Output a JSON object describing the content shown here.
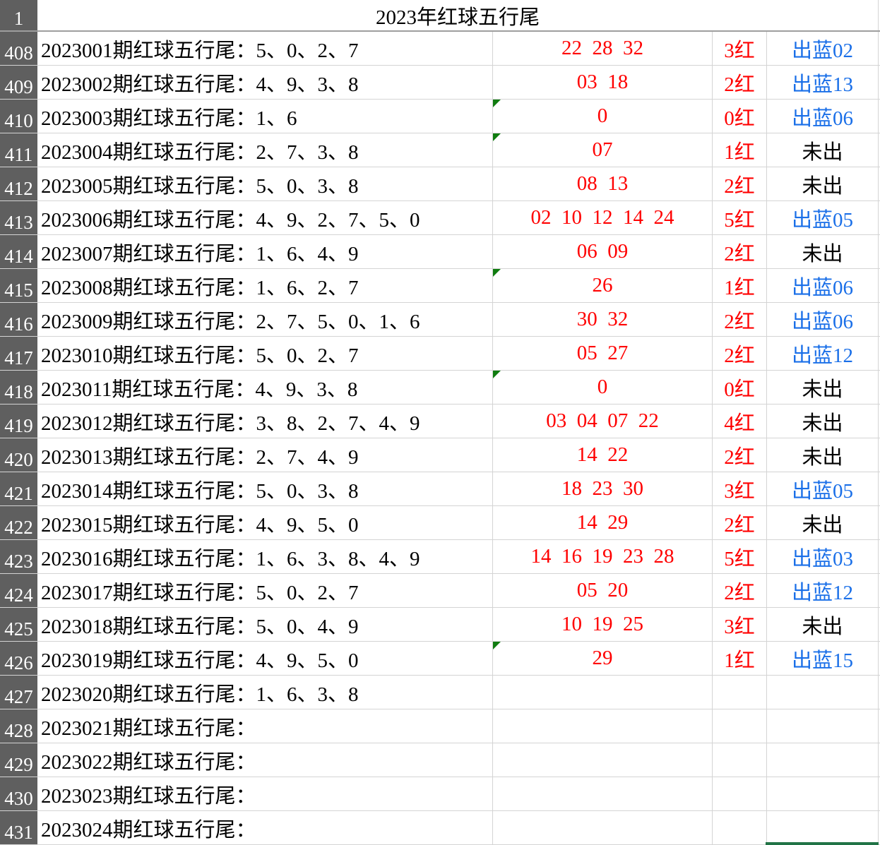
{
  "title_row": {
    "row_number": "1",
    "title": "2023年红球五行尾"
  },
  "colors": {
    "red": "#ff0000",
    "blue": "#1a6fe8",
    "black": "#000000",
    "indicator": "#107c10",
    "header_bg": "#5f5f5f"
  },
  "rows": [
    {
      "num": "408",
      "a": "2023001期红球五行尾：5、0、2、7",
      "b": "22  28  32",
      "c": "3红",
      "d": "出蓝02",
      "d_color": "blue",
      "flag": false
    },
    {
      "num": "409",
      "a": "2023002期红球五行尾：4、9、3、8",
      "b": "03  18",
      "c": "2红",
      "d": "出蓝13",
      "d_color": "blue",
      "flag": false
    },
    {
      "num": "410",
      "a": "2023003期红球五行尾：1、6",
      "b": "0",
      "c": "0红",
      "d": "出蓝06",
      "d_color": "blue",
      "flag": true
    },
    {
      "num": "411",
      "a": "2023004期红球五行尾：2、7、3、8",
      "b": "07",
      "c": "1红",
      "d": "未出",
      "d_color": "black",
      "flag": true
    },
    {
      "num": "412",
      "a": "2023005期红球五行尾：5、0、3、8",
      "b": "08  13",
      "c": "2红",
      "d": "未出",
      "d_color": "black",
      "flag": false
    },
    {
      "num": "413",
      "a": "2023006期红球五行尾：4、9、2、7、5、0",
      "b": "02  10  12  14  24",
      "c": "5红",
      "d": "出蓝05",
      "d_color": "blue",
      "flag": false
    },
    {
      "num": "414",
      "a": "2023007期红球五行尾：1、6、4、9",
      "b": "06  09",
      "c": "2红",
      "d": "未出",
      "d_color": "black",
      "flag": false
    },
    {
      "num": "415",
      "a": "2023008期红球五行尾：1、6、2、7",
      "b": "26",
      "c": "1红",
      "d": "出蓝06",
      "d_color": "blue",
      "flag": true
    },
    {
      "num": "416",
      "a": "2023009期红球五行尾：2、7、5、0、1、6",
      "b": "30  32",
      "c": "2红",
      "d": "出蓝06",
      "d_color": "blue",
      "flag": false
    },
    {
      "num": "417",
      "a": "2023010期红球五行尾：5、0、2、7",
      "b": "05  27",
      "c": "2红",
      "d": "出蓝12",
      "d_color": "blue",
      "flag": false
    },
    {
      "num": "418",
      "a": "2023011期红球五行尾：4、9、3、8",
      "b": "0",
      "c": "0红",
      "d": "未出",
      "d_color": "black",
      "flag": true
    },
    {
      "num": "419",
      "a": "2023012期红球五行尾：3、8、2、7、4、9",
      "b": "03  04  07  22",
      "c": "4红",
      "d": "未出",
      "d_color": "black",
      "flag": false
    },
    {
      "num": "420",
      "a": "2023013期红球五行尾：2、7、4、9",
      "b": "14  22",
      "c": "2红",
      "d": "未出",
      "d_color": "black",
      "flag": false
    },
    {
      "num": "421",
      "a": "2023014期红球五行尾：5、0、3、8",
      "b": "18  23  30",
      "c": "3红",
      "d": "出蓝05",
      "d_color": "blue",
      "flag": false
    },
    {
      "num": "422",
      "a": "2023015期红球五行尾：4、9、5、0",
      "b": "14  29",
      "c": "2红",
      "d": "未出",
      "d_color": "black",
      "flag": false
    },
    {
      "num": "423",
      "a": "2023016期红球五行尾：1、6、3、8、4、9",
      "b": "14  16  19  23  28",
      "c": "5红",
      "d": "出蓝03",
      "d_color": "blue",
      "flag": false
    },
    {
      "num": "424",
      "a": "2023017期红球五行尾：5、0、2、7",
      "b": "05  20",
      "c": "2红",
      "d": "出蓝12",
      "d_color": "blue",
      "flag": false
    },
    {
      "num": "425",
      "a": "2023018期红球五行尾：5、0、4、9",
      "b": "10  19  25",
      "c": "3红",
      "d": "未出",
      "d_color": "black",
      "flag": false
    },
    {
      "num": "426",
      "a": "2023019期红球五行尾：4、9、5、0",
      "b": "29",
      "c": "1红",
      "d": "出蓝15",
      "d_color": "blue",
      "flag": true
    },
    {
      "num": "427",
      "a": "2023020期红球五行尾：1、6、3、8",
      "b": "",
      "c": "",
      "d": "",
      "d_color": "black",
      "flag": false
    },
    {
      "num": "428",
      "a": "2023021期红球五行尾：",
      "b": "",
      "c": "",
      "d": "",
      "d_color": "black",
      "flag": false
    },
    {
      "num": "429",
      "a": "2023022期红球五行尾：",
      "b": "",
      "c": "",
      "d": "",
      "d_color": "black",
      "flag": false
    },
    {
      "num": "430",
      "a": "2023023期红球五行尾：",
      "b": "",
      "c": "",
      "d": "",
      "d_color": "black",
      "flag": false
    },
    {
      "num": "431",
      "a": "2023024期红球五行尾：",
      "b": "",
      "c": "",
      "d": "",
      "d_color": "black",
      "flag": false
    }
  ]
}
